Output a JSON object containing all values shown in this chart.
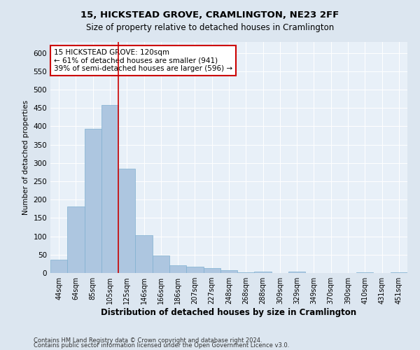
{
  "title1": "15, HICKSTEAD GROVE, CRAMLINGTON, NE23 2FF",
  "title2": "Size of property relative to detached houses in Cramlington",
  "xlabel": "Distribution of detached houses by size in Cramlington",
  "ylabel": "Number of detached properties",
  "bar_labels": [
    "44sqm",
    "64sqm",
    "85sqm",
    "105sqm",
    "125sqm",
    "146sqm",
    "166sqm",
    "186sqm",
    "207sqm",
    "227sqm",
    "248sqm",
    "268sqm",
    "288sqm",
    "309sqm",
    "329sqm",
    "349sqm",
    "370sqm",
    "390sqm",
    "410sqm",
    "431sqm",
    "451sqm"
  ],
  "bar_values": [
    37,
    182,
    393,
    459,
    284,
    104,
    48,
    21,
    18,
    13,
    7,
    1,
    3,
    0,
    4,
    0,
    0,
    0,
    2,
    0,
    1
  ],
  "bar_color": "#adc6e0",
  "bar_edge_color": "#7fafd0",
  "vline_color": "#cc0000",
  "annotation_text": "15 HICKSTEAD GROVE: 120sqm\n← 61% of detached houses are smaller (941)\n39% of semi-detached houses are larger (596) →",
  "annotation_box_color": "#ffffff",
  "annotation_edge_color": "#cc0000",
  "ylim": [
    0,
    630
  ],
  "yticks": [
    0,
    50,
    100,
    150,
    200,
    250,
    300,
    350,
    400,
    450,
    500,
    550,
    600
  ],
  "footnote1": "Contains HM Land Registry data © Crown copyright and database right 2024.",
  "footnote2": "Contains public sector information licensed under the Open Government Licence v3.0.",
  "bg_color": "#dce6f0",
  "plot_bg_color": "#e8f0f8"
}
